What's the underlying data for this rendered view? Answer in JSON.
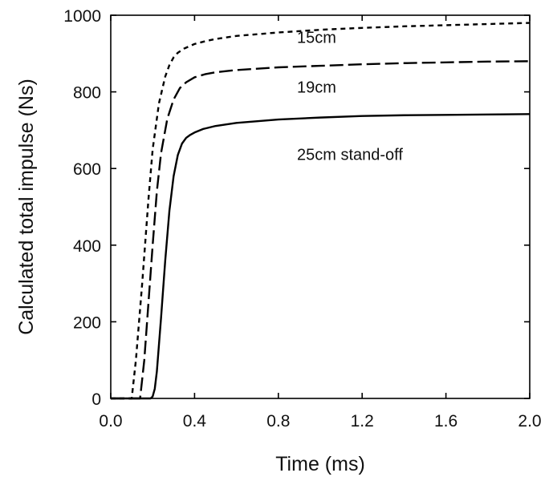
{
  "chart_data": {
    "type": "line",
    "xlabel": "Time   (ms)",
    "ylabel": "Calculated total impulse   (Ns)",
    "xlim": [
      0.0,
      2.0
    ],
    "ylim": [
      0,
      1000
    ],
    "x_ticks": [
      "0.0",
      "0.4",
      "0.8",
      "1.2",
      "1.6",
      "2.0"
    ],
    "y_ticks": [
      "0",
      "200",
      "400",
      "600",
      "800",
      "1000"
    ],
    "x_tick_values": [
      0.0,
      0.4,
      0.8,
      1.2,
      1.6,
      2.0
    ],
    "y_tick_values": [
      0,
      200,
      400,
      600,
      800,
      1000
    ],
    "grid": false,
    "legend": "none",
    "series": [
      {
        "label": "15cm",
        "line_style": "short-dash",
        "color": "#000000",
        "x": [
          0.0,
          0.1,
          0.12,
          0.15,
          0.18,
          0.2,
          0.23,
          0.26,
          0.28,
          0.3,
          0.32,
          0.35,
          0.4,
          0.45,
          0.5,
          0.6,
          0.8,
          1.0,
          1.2,
          1.4,
          1.6,
          1.8,
          2.0
        ],
        "y": [
          0,
          0,
          100,
          300,
          520,
          650,
          770,
          840,
          870,
          890,
          902,
          913,
          925,
          932,
          938,
          946,
          955,
          962,
          967,
          971,
          974,
          977,
          980
        ]
      },
      {
        "label": "19cm",
        "line_style": "long-dash",
        "color": "#000000",
        "x": [
          0.0,
          0.14,
          0.16,
          0.18,
          0.2,
          0.22,
          0.24,
          0.27,
          0.3,
          0.33,
          0.36,
          0.4,
          0.45,
          0.5,
          0.6,
          0.8,
          1.0,
          1.2,
          1.4,
          1.6,
          1.8,
          2.0
        ],
        "y": [
          0,
          0,
          100,
          250,
          400,
          540,
          640,
          730,
          780,
          810,
          825,
          838,
          846,
          851,
          857,
          864,
          868,
          872,
          875,
          877,
          879,
          880
        ]
      },
      {
        "label": "25cm stand-off",
        "line_style": "solid",
        "color": "#000000",
        "x": [
          0.0,
          0.19,
          0.2,
          0.21,
          0.22,
          0.24,
          0.26,
          0.28,
          0.3,
          0.32,
          0.34,
          0.36,
          0.38,
          0.4,
          0.44,
          0.5,
          0.6,
          0.8,
          1.0,
          1.2,
          1.4,
          1.6,
          1.8,
          2.0
        ],
        "y": [
          0,
          0,
          5,
          25,
          70,
          210,
          360,
          490,
          580,
          635,
          665,
          680,
          688,
          694,
          703,
          711,
          719,
          728,
          733,
          737,
          739,
          740,
          741,
          742
        ]
      }
    ]
  }
}
